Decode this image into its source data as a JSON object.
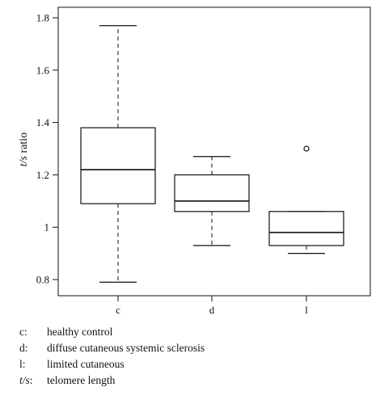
{
  "chart_data": {
    "type": "boxplot",
    "ylabel_italic": "t/s",
    "ylabel_rest": " ratio",
    "ylim": [
      0.75,
      1.82
    ],
    "yticks": [
      0.8,
      1,
      1.2,
      1.4,
      1.6,
      1.8
    ],
    "ytick_labels": [
      "0.8",
      "1",
      "1.2",
      "1.4",
      "1.6",
      "1.8"
    ],
    "categories": [
      "c",
      "d",
      "l"
    ],
    "boxes": [
      {
        "category": "c",
        "whisker_low": 0.79,
        "q1": 1.09,
        "median": 1.22,
        "q3": 1.38,
        "whisker_high": 1.77,
        "outliers": []
      },
      {
        "category": "d",
        "whisker_low": 0.93,
        "q1": 1.06,
        "median": 1.1,
        "q3": 1.2,
        "whisker_high": 1.27,
        "outliers": []
      },
      {
        "category": "l",
        "whisker_low": 0.9,
        "q1": 0.93,
        "median": 0.98,
        "q3": 1.06,
        "whisker_high": 1.06,
        "outliers": [
          1.3
        ]
      }
    ],
    "grid": false
  },
  "legend": [
    {
      "key": "c:",
      "key_italic": false,
      "text": "healthy control"
    },
    {
      "key": "d:",
      "key_italic": false,
      "text": "diffuse cutaneous systemic sclerosis"
    },
    {
      "key": "l:",
      "key_italic": false,
      "text": "limited cutaneous"
    },
    {
      "key_italic_part": "t/s",
      "key_rest": ":",
      "key_italic": true,
      "text": "telomere length"
    }
  ]
}
